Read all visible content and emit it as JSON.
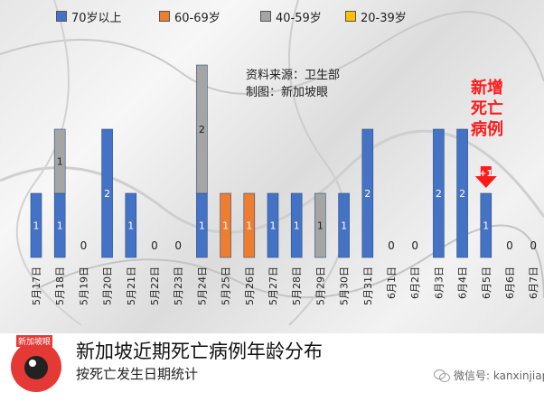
{
  "chart_data": {
    "type": "bar",
    "title": "新加坡近期死亡病例年龄分布",
    "subtitle": "按死亡发生日期统计",
    "categories": [
      "5月17日",
      "5月18日",
      "5月19日",
      "5月20日",
      "5月21日",
      "5月22日",
      "5月23日",
      "5月24日",
      "5月25日",
      "5月26日",
      "5月27日",
      "5月28日",
      "5月29日",
      "5月30日",
      "5月31日",
      "6月1日",
      "6月2日",
      "6月3日",
      "6月4日",
      "6月5日",
      "6月6日",
      "6月7日"
    ],
    "series": [
      {
        "name": "70岁以上",
        "color": "#4472c4",
        "values": [
          1,
          1,
          0,
          2,
          1,
          0,
          0,
          1,
          0,
          0,
          1,
          1,
          0,
          1,
          2,
          0,
          0,
          2,
          2,
          1,
          0,
          0
        ]
      },
      {
        "name": "60-69岁",
        "color": "#ed7d31",
        "values": [
          0,
          0,
          0,
          0,
          0,
          0,
          0,
          0,
          1,
          1,
          0,
          0,
          0,
          0,
          0,
          0,
          0,
          0,
          0,
          0,
          0,
          0
        ]
      },
      {
        "name": "40-59岁",
        "color": "#a5a5a5",
        "values": [
          0,
          1,
          0,
          0,
          0,
          0,
          0,
          2,
          0,
          0,
          0,
          0,
          1,
          0,
          0,
          0,
          0,
          0,
          0,
          0,
          0,
          0
        ]
      },
      {
        "name": "20-39岁",
        "color": "#ffc000",
        "values": [
          0,
          0,
          0,
          0,
          0,
          0,
          0,
          0,
          0,
          0,
          0,
          0,
          0,
          0,
          0,
          0,
          0,
          0,
          0,
          0,
          0,
          0
        ]
      }
    ],
    "ylim": [
      0,
      5
    ],
    "grid": false,
    "legend_position": "top"
  },
  "notes": {
    "source": "资料来源：卫生部",
    "made_by": "制图：新加坡眼"
  },
  "annotation": {
    "label_line1": "新增",
    "label_line2": "死亡",
    "label_line3": "病例",
    "arrow_text": "+1",
    "category": "6月5日",
    "color": "#ff1a1a"
  },
  "footer": {
    "logo_text": "新加坡眼",
    "wechat": "微信号: kanxinjiapo"
  }
}
